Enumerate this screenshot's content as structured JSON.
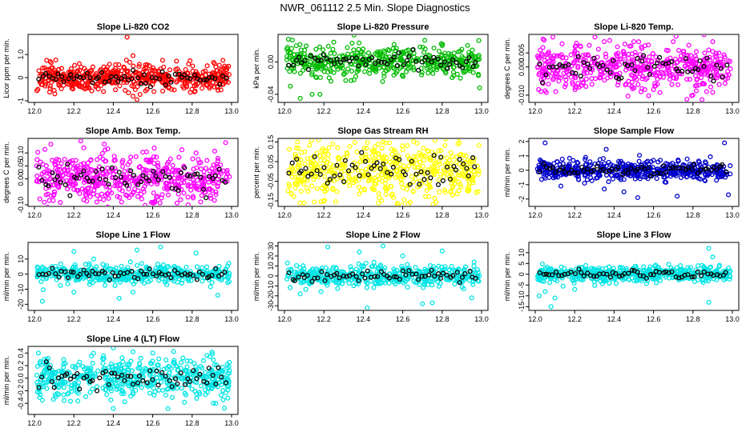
{
  "page_title": "NWR_061112  2.5 Min. Slope Diagnostics",
  "chart_data": [
    {
      "type": "scatter",
      "title": "Slope Li-820 CO2",
      "ylabel": "Licor ppm per min.",
      "xlim": [
        12.0,
        13.0
      ],
      "ylim": [
        -1.0,
        1.8
      ],
      "xticks": [
        "12.0",
        "12.2",
        "12.4",
        "12.6",
        "12.8",
        "13.0"
      ],
      "yticks": [
        "-1",
        "0",
        "1.0"
      ],
      "ytick_values": [
        -1,
        0,
        1.0
      ],
      "color": "#ff0000",
      "spread": 0.28,
      "n": 520,
      "outliers": [
        [
          12.47,
          1.75
        ],
        [
          12.5,
          0.95
        ],
        [
          12.46,
          -0.55
        ],
        [
          12.5,
          -0.8
        ],
        [
          12.52,
          -0.95
        ],
        [
          12.65,
          0.75
        ],
        [
          12.35,
          -0.6
        ],
        [
          12.08,
          0.7
        ],
        [
          12.1,
          -0.55
        ]
      ]
    },
    {
      "type": "scatter",
      "title": "Slope Li-820 Pressure",
      "ylabel": "kPa per min.",
      "xlim": [
        12.0,
        13.0
      ],
      "ylim": [
        -0.048,
        0.032
      ],
      "xticks": [
        "12.0",
        "12.2",
        "12.4",
        "12.6",
        "12.8",
        "13.0"
      ],
      "yticks": [
        "-0.04",
        "0.00"
      ],
      "ytick_values": [
        -0.04,
        0.0
      ],
      "color": "#00bb00",
      "spread": 0.009,
      "n": 440,
      "outliers": [
        [
          12.02,
          0.028
        ],
        [
          12.03,
          -0.03
        ],
        [
          12.08,
          -0.045
        ],
        [
          12.04,
          0.027
        ],
        [
          12.14,
          -0.04
        ],
        [
          12.18,
          -0.04
        ],
        [
          12.06,
          0.02
        ],
        [
          12.99,
          -0.032
        ],
        [
          12.8,
          0.02
        ]
      ]
    },
    {
      "type": "scatter",
      "title": "Slope Li-820 Temp.",
      "ylabel": "degrees C per min.",
      "xlim": [
        12.0,
        13.0
      ],
      "ylim": [
        -0.012,
        0.011
      ],
      "xticks": [
        "12.0",
        "12.2",
        "12.4",
        "12.6",
        "12.8",
        "13.0"
      ],
      "yticks": [
        "-0.010",
        "0.000",
        "0.005"
      ],
      "ytick_values": [
        -0.01,
        0.0,
        0.005
      ],
      "color": "#ff00ff",
      "spread": 0.004,
      "n": 520,
      "outliers": [
        [
          12.35,
          0.009
        ],
        [
          12.5,
          0.009
        ],
        [
          12.7,
          0.009
        ],
        [
          12.9,
          0.009
        ],
        [
          12.15,
          -0.007
        ],
        [
          12.6,
          -0.008
        ],
        [
          12.8,
          -0.01
        ],
        [
          12.9,
          -0.009
        ]
      ]
    },
    {
      "type": "scatter",
      "title": "Slope Amb. Box Temp.",
      "ylabel": "degrees C per min.",
      "xlim": [
        12.0,
        13.0
      ],
      "ylim": [
        -0.1,
        0.15
      ],
      "xticks": [
        "12.0",
        "12.2",
        "12.4",
        "12.6",
        "12.8",
        "13.0"
      ],
      "yticks": [
        "-0.10",
        "0.00",
        "0.05",
        "0.10"
      ],
      "ytick_values": [
        -0.1,
        0.0,
        0.05,
        0.1
      ],
      "color": "#ff00ff",
      "spread": 0.05,
      "n": 520,
      "outliers": [
        [
          12.25,
          0.12
        ],
        [
          12.82,
          0.1
        ],
        [
          12.97,
          0.14
        ],
        [
          12.05,
          -0.09
        ],
        [
          12.78,
          -0.1
        ],
        [
          12.6,
          -0.09
        ]
      ]
    },
    {
      "type": "scatter",
      "title": "Slope Gas Stream RH",
      "ylabel": "percent per min.",
      "xlim": [
        12.0,
        13.0
      ],
      "ylim": [
        -0.17,
        0.16
      ],
      "xticks": [
        "12.0",
        "12.2",
        "12.4",
        "12.6",
        "12.8",
        "13.0"
      ],
      "yticks": [
        "-0.15",
        "-0.05",
        "0.05",
        "0.15"
      ],
      "ytick_values": [
        -0.15,
        -0.05,
        0.05,
        0.15
      ],
      "color": "#ffff00",
      "spread": 0.07,
      "n": 520,
      "outliers": [
        [
          12.5,
          0.15
        ],
        [
          12.88,
          0.14
        ],
        [
          12.08,
          -0.16
        ],
        [
          12.1,
          -0.16
        ]
      ]
    },
    {
      "type": "scatter",
      "title": "Slope Sample Flow",
      "ylabel": "ml/min per min.",
      "xlim": [
        12.0,
        13.0
      ],
      "ylim": [
        -2.4,
        2.1
      ],
      "xticks": [
        "12.0",
        "12.2",
        "12.4",
        "12.6",
        "12.8",
        "13.0"
      ],
      "yticks": [
        "-2",
        "-1",
        "0",
        "1",
        "2"
      ],
      "ytick_values": [
        -2,
        -1,
        0,
        1,
        2
      ],
      "color": "#0000cc",
      "spread": 0.32,
      "n": 520,
      "outliers": [
        [
          12.05,
          1.9
        ],
        [
          12.36,
          1.45
        ],
        [
          12.96,
          1.9
        ],
        [
          12.13,
          -1.1
        ],
        [
          12.45,
          -1.5
        ],
        [
          12.52,
          -1.9
        ],
        [
          12.98,
          -1.7
        ],
        [
          12.72,
          -1.8
        ],
        [
          12.35,
          -1.3
        ],
        [
          12.25,
          -0.9
        ]
      ]
    },
    {
      "type": "scatter",
      "title": "Slope Line 1 Flow",
      "ylabel": "ml/min per min.",
      "xlim": [
        12.0,
        13.0
      ],
      "ylim": [
        -23,
        20
      ],
      "xticks": [
        "12.0",
        "12.2",
        "12.4",
        "12.6",
        "12.8",
        "13.0"
      ],
      "yticks": [
        "-20",
        "-10",
        "0",
        "10"
      ],
      "ytick_values": [
        -20,
        -10,
        0,
        10
      ],
      "color": "#00e5e5",
      "spread": 3.0,
      "n": 440,
      "outliers": [
        [
          12.2,
          15
        ],
        [
          12.52,
          16
        ],
        [
          12.64,
          18
        ],
        [
          12.43,
          -16
        ],
        [
          12.2,
          -12
        ],
        [
          12.04,
          -18
        ],
        [
          12.82,
          14
        ],
        [
          12.93,
          -14
        ],
        [
          12.3,
          10
        ],
        [
          12.5,
          -12
        ]
      ]
    },
    {
      "type": "scatter",
      "title": "Slope Line 2 Flow",
      "ylabel": "ml/min per min.",
      "xlim": [
        12.0,
        13.0
      ],
      "ylim": [
        -33,
        32
      ],
      "xticks": [
        "12.0",
        "12.2",
        "12.4",
        "12.6",
        "12.8",
        "13.0"
      ],
      "yticks": [
        "-30",
        "-20",
        "-10",
        "0",
        "10",
        "20",
        "30"
      ],
      "ytick_values": [
        -30,
        -20,
        -10,
        0,
        10,
        20,
        30
      ],
      "color": "#00e5e5",
      "spread": 5.0,
      "n": 440,
      "outliers": [
        [
          12.22,
          29
        ],
        [
          12.38,
          24
        ],
        [
          12.5,
          30
        ],
        [
          12.8,
          25
        ],
        [
          12.08,
          -18
        ],
        [
          12.42,
          -32
        ],
        [
          12.7,
          -28
        ],
        [
          12.75,
          -27
        ],
        [
          12.95,
          -22
        ],
        [
          12.6,
          20
        ]
      ]
    },
    {
      "type": "scatter",
      "title": "Slope Line 3 Flow",
      "ylabel": "ml/min per min.",
      "xlim": [
        12.0,
        13.0
      ],
      "ylim": [
        -16,
        14
      ],
      "xticks": [
        "12.0",
        "12.2",
        "12.4",
        "12.6",
        "12.8",
        "13.0"
      ],
      "yticks": [
        "-15",
        "-10",
        "-5",
        "0",
        "5",
        "10"
      ],
      "ytick_values": [
        -15,
        -10,
        -5,
        0,
        5,
        10
      ],
      "color": "#00e5e5",
      "spread": 1.7,
      "n": 520,
      "outliers": [
        [
          12.08,
          -15
        ],
        [
          12.05,
          -8
        ],
        [
          12.02,
          -10
        ],
        [
          12.1,
          -11
        ],
        [
          12.88,
          12
        ],
        [
          12.9,
          8
        ],
        [
          12.88,
          -13
        ],
        [
          12.2,
          -7
        ]
      ]
    },
    {
      "type": "scatter",
      "title": "Slope Line 4 (LT) Flow",
      "ylabel": "ml/min per min.",
      "xlim": [
        12.0,
        13.0
      ],
      "ylim": [
        -0.55,
        0.48
      ],
      "xticks": [
        "12.0",
        "12.2",
        "12.4",
        "12.6",
        "12.8",
        "13.0"
      ],
      "yticks": [
        "-0.4",
        "-0.2",
        "0.0",
        "0.2",
        "0.4"
      ],
      "ytick_values": [
        -0.4,
        -0.2,
        0.0,
        0.2,
        0.4
      ],
      "color": "#00e5e5",
      "spread": 0.16,
      "n": 520,
      "outliers": [
        [
          12.02,
          0.4
        ],
        [
          12.5,
          0.42
        ],
        [
          12.6,
          0.4
        ],
        [
          12.4,
          -0.48
        ],
        [
          12.92,
          -0.4
        ],
        [
          12.04,
          -0.35
        ]
      ]
    }
  ]
}
